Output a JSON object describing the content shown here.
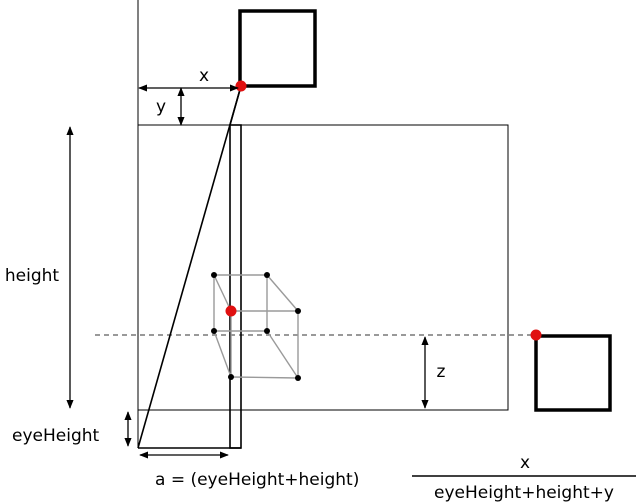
{
  "labels": {
    "x": "x",
    "y": "y",
    "height": "height",
    "z": "z",
    "eye_height": "eyeHeight"
  },
  "formula": {
    "lhs": "a = (eyeHeight+height)",
    "numerator": "x",
    "denominator": "eyeHeight+height+y"
  },
  "colors": {
    "point": "#e01010",
    "line": "#000000",
    "cube_edge": "#9a9a9a",
    "background": "#ffffff"
  }
}
